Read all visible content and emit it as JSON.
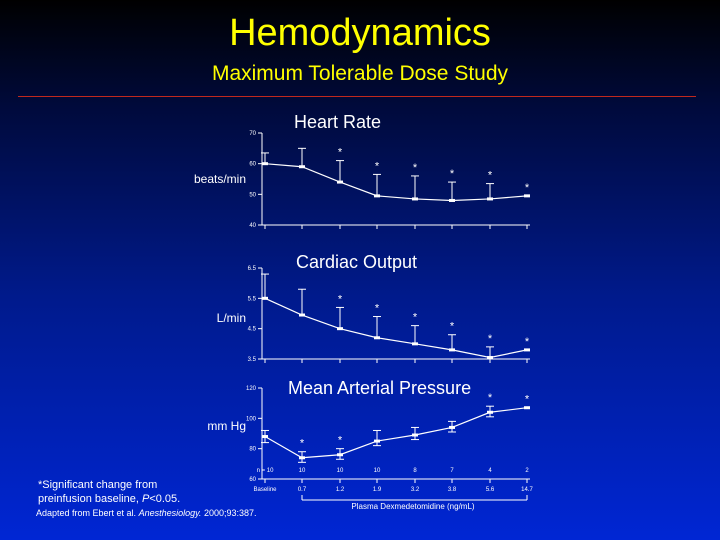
{
  "slide": {
    "title": "Hemodynamics",
    "subtitle": "Maximum Tolerable Dose Study",
    "footnote_line1": "*Significant change from",
    "footnote_line2_prefix": "preinfusion baseline, ",
    "footnote_line2_p": "P",
    "footnote_line2_suffix": "<0.05.",
    "source_prefix": "Adapted from Ebert et al. ",
    "source_journal": "Anesthesiology.",
    "source_suffix": " 2000;93:387.",
    "x_axis_title": "Plasma Dexmedetomidine (ng/mL)",
    "colors": {
      "title": "#ffff00",
      "rule": "#c0281e",
      "marks": "#ffffff"
    }
  },
  "chart_data": [
    {
      "type": "line",
      "title": "Heart Rate",
      "ylabel": "beats/min",
      "ylim": [
        40,
        70
      ],
      "yticks": [
        "40",
        "50",
        "60",
        "70"
      ],
      "x": [
        "Baseline",
        "0.7",
        "1.2",
        "1.9",
        "3.2",
        "3.8",
        "5.6",
        "14.7"
      ],
      "values": [
        60,
        59,
        54,
        49.5,
        48.5,
        48,
        48.5,
        49.5
      ],
      "error_upper": [
        63.5,
        65,
        61,
        56.5,
        56,
        54,
        53.5,
        49.5
      ],
      "significant": [
        false,
        false,
        true,
        true,
        true,
        true,
        true,
        true
      ]
    },
    {
      "type": "line",
      "title": "Cardiac Output",
      "ylabel": "L/min",
      "ylim": [
        3.5,
        6.5
      ],
      "yticks": [
        "3.5",
        "4.5",
        "5.5",
        "6.5"
      ],
      "x": [
        "Baseline",
        "0.7",
        "1.2",
        "1.9",
        "3.2",
        "3.8",
        "5.6",
        "14.7"
      ],
      "values": [
        5.5,
        4.95,
        4.5,
        4.2,
        4.0,
        3.8,
        3.55,
        3.8
      ],
      "error_upper": [
        6.3,
        5.8,
        5.2,
        4.9,
        4.6,
        4.3,
        3.9,
        3.8
      ],
      "significant": [
        false,
        false,
        true,
        true,
        true,
        true,
        true,
        true
      ]
    },
    {
      "type": "line",
      "title": "Mean Arterial Pressure",
      "ylabel": "mm Hg",
      "ylim": [
        60,
        120
      ],
      "yticks": [
        "60",
        "80",
        "100",
        "120"
      ],
      "x": [
        "Baseline",
        "0.7",
        "1.2",
        "1.9",
        "3.2",
        "3.8",
        "5.6",
        "14.7"
      ],
      "values": [
        88,
        74,
        76,
        85,
        89,
        94,
        104,
        107
      ],
      "error_lower": [
        84,
        71,
        73,
        82,
        86,
        91,
        101,
        107
      ],
      "error_upper": [
        92,
        78,
        80,
        92,
        94,
        98,
        108,
        107
      ],
      "significant": [
        false,
        true,
        true,
        false,
        false,
        false,
        true,
        true
      ],
      "n_label": "n = 10",
      "n_values": [
        "10",
        "10",
        "10",
        "8",
        "7",
        "4",
        "2"
      ],
      "baseline_label": "Baseline",
      "conc_labels": [
        "0.7",
        "1.2",
        "1.9",
        "3.2",
        "3.8",
        "5.6",
        "14.7"
      ]
    }
  ]
}
